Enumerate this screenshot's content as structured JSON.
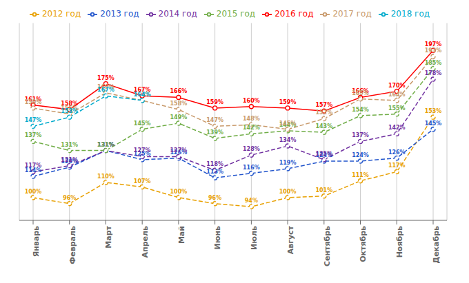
{
  "chart_data": {
    "type": "line",
    "categories": [
      "Январь",
      "Февраль",
      "Март",
      "Апрель",
      "Май",
      "Июнь",
      "Июль",
      "Август",
      "Сентябрь",
      "Октябрь",
      "Ноябрь",
      "Декабрь"
    ],
    "series": [
      {
        "name": "2012 год",
        "color": "#E8A000",
        "line_style": "dashed",
        "marker": "circle",
        "values": [
          100,
          96,
          110,
          107,
          100,
          96,
          94,
          100,
          101,
          111,
          117,
          153
        ],
        "value_labels": [
          "100%",
          "96%",
          "110%",
          "107%",
          "100%",
          "96%",
          "94%",
          "100%",
          "101%",
          "111%",
          "117%",
          "153%"
        ]
      },
      {
        "name": "2013 год",
        "color": "#2255CC",
        "line_style": "dashed",
        "marker": "circle",
        "values": [
          114,
          120,
          131,
          125,
          126,
          113,
          116,
          119,
          124,
          124,
          126,
          145
        ],
        "value_labels": [
          "114%",
          "120%",
          "131%",
          "125%",
          "126%",
          "113%",
          "116%",
          "119%",
          "124%",
          "124%",
          "126%",
          "145%"
        ]
      },
      {
        "name": "2014 год",
        "color": "#7030A0",
        "line_style": "dashed",
        "marker": "circle",
        "values": [
          117,
          121,
          131,
          127,
          127,
          118,
          128,
          134,
          125,
          137,
          142,
          178
        ],
        "value_labels": [
          "117%",
          "121%",
          "131%",
          "127%",
          "127%",
          "118%",
          "128%",
          "134%",
          "125%",
          "137%",
          "142%",
          "178%"
        ]
      },
      {
        "name": "2015 год",
        "color": "#70AD47",
        "line_style": "dashed",
        "marker": "circle",
        "values": [
          137,
          131,
          131,
          145,
          149,
          139,
          142,
          144,
          143,
          154,
          155,
          185
        ],
        "value_labels": [
          "137%",
          "131%",
          "131%",
          "145%",
          "149%",
          "139%",
          "142%",
          "144%",
          "143%",
          "154%",
          "155%",
          "185%"
        ]
      },
      {
        "name": "2016 год",
        "color": "#FF0000",
        "line_style": "solid",
        "marker": "circle",
        "values": [
          161,
          158,
          175,
          167,
          166,
          159,
          160,
          159,
          157,
          166,
          170,
          197
        ],
        "value_labels": [
          "161%",
          "158%",
          "175%",
          "167%",
          "166%",
          "159%",
          "160%",
          "159%",
          "157%",
          "166%",
          "170%",
          "197%"
        ]
      },
      {
        "name": "2017 год",
        "color": "#C8996A",
        "line_style": "dashed",
        "marker": "circle",
        "values": [
          159,
          155,
          169,
          164,
          158,
          147,
          148,
          145,
          152,
          165,
          164,
          193
        ],
        "value_labels": [
          "159%",
          "155%",
          "169%",
          "164%",
          "158%",
          "147%",
          "148%",
          "145%",
          "152%",
          "165%",
          "164%",
          "193%"
        ]
      },
      {
        "name": "2018 год",
        "color": "#00AACC",
        "line_style": "dashed",
        "marker": "circle",
        "values": [
          147,
          153,
          167,
          164,
          null,
          null,
          null,
          null,
          null,
          null,
          null,
          null
        ],
        "value_labels": [
          "147%",
          "153%",
          "167%",
          "164%",
          null,
          null,
          null,
          null,
          null,
          null,
          null,
          null
        ]
      }
    ],
    "ylim": [
      85,
      215
    ],
    "grid": "x",
    "legend": "top",
    "data_labels": true,
    "tick_labels": "x"
  }
}
